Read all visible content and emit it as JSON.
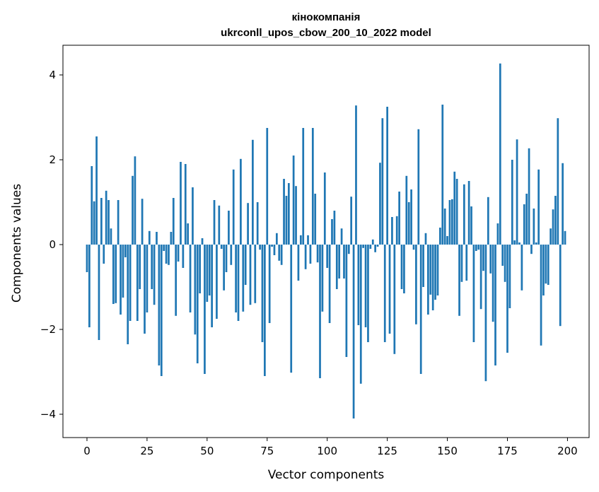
{
  "chart_data": {
    "type": "bar",
    "title": "кінокомпанія",
    "subtitle": "ukrconll_upos_cbow_200_10_2022 model",
    "xlabel": "Vector components",
    "ylabel": "Components values",
    "xlim": [
      -10,
      209
    ],
    "ylim": [
      -4.55,
      4.7
    ],
    "xticks": [
      0,
      25,
      50,
      75,
      100,
      125,
      150,
      175,
      200
    ],
    "yticks": [
      -4,
      -2,
      0,
      2,
      4
    ],
    "xtick_labels": [
      "0",
      "25",
      "50",
      "75",
      "100",
      "125",
      "150",
      "175",
      "200"
    ],
    "ytick_labels": [
      "−4",
      "−2",
      "0",
      "2",
      "4"
    ],
    "grid": false,
    "color": "#1f77b4",
    "values": [
      -0.65,
      -1.95,
      1.85,
      1.02,
      2.55,
      -2.25,
      1.1,
      -0.45,
      1.27,
      1.05,
      0.38,
      -1.4,
      -1.38,
      1.05,
      -1.65,
      -1.25,
      -0.3,
      -2.35,
      -1.8,
      1.62,
      2.08,
      -1.8,
      -1.05,
      1.08,
      -2.1,
      -1.6,
      0.32,
      -1.05,
      -1.42,
      0.3,
      -2.85,
      -3.1,
      -0.15,
      -0.45,
      -0.48,
      0.3,
      1.1,
      -1.68,
      -0.4,
      1.95,
      -0.55,
      1.9,
      0.5,
      -1.6,
      1.35,
      -2.12,
      -2.8,
      -1.15,
      0.15,
      -3.05,
      -1.35,
      -1.2,
      -1.95,
      1.05,
      -1.75,
      0.92,
      -0.1,
      -1.08,
      -0.65,
      0.8,
      -0.48,
      1.77,
      -1.6,
      -1.8,
      2.02,
      -1.58,
      -0.95,
      0.98,
      -1.42,
      2.47,
      -1.38,
      1.0,
      -0.12,
      -2.3,
      -3.1,
      2.75,
      -1.85,
      -0.05,
      -0.25,
      0.27,
      -0.38,
      -0.48,
      1.55,
      1.15,
      1.45,
      -3.02,
      2.1,
      1.38,
      -0.85,
      0.22,
      2.75,
      -0.58,
      0.22,
      -0.45,
      2.75,
      1.2,
      -0.42,
      -3.15,
      -1.58,
      1.7,
      -0.55,
      -1.85,
      0.6,
      0.8,
      -1.05,
      -0.8,
      0.38,
      -0.8,
      -2.65,
      -0.22,
      1.13,
      -4.1,
      3.28,
      -1.9,
      -3.28,
      -0.08,
      -1.95,
      -2.3,
      -0.1,
      0.12,
      -0.18,
      -0.05,
      1.93,
      2.98,
      -2.3,
      3.25,
      -2.1,
      0.65,
      -2.58,
      0.67,
      1.25,
      -1.05,
      -1.15,
      1.62,
      1.0,
      1.3,
      -0.12,
      -1.88,
      2.72,
      -3.05,
      -1.0,
      0.27,
      -1.65,
      -1.18,
      -1.55,
      -1.3,
      -1.2,
      0.4,
      3.3,
      0.85,
      0.2,
      1.05,
      1.07,
      1.72,
      1.55,
      -1.68,
      -0.88,
      1.42,
      -0.85,
      1.5,
      0.9,
      -2.3,
      -0.15,
      -0.12,
      -1.52,
      -0.62,
      -3.22,
      1.12,
      -0.68,
      -1.82,
      -2.85,
      0.5,
      4.27,
      -0.5,
      -0.88,
      -2.55,
      -1.5,
      2.0,
      0.1,
      2.48,
      0.05,
      -1.08,
      0.95,
      1.2,
      2.27,
      -0.22,
      0.85,
      0.05,
      1.77,
      -2.38,
      -1.2,
      -0.92,
      -0.95,
      0.38,
      0.83,
      1.15,
      2.98,
      -1.92,
      1.92,
      0.32
    ]
  }
}
